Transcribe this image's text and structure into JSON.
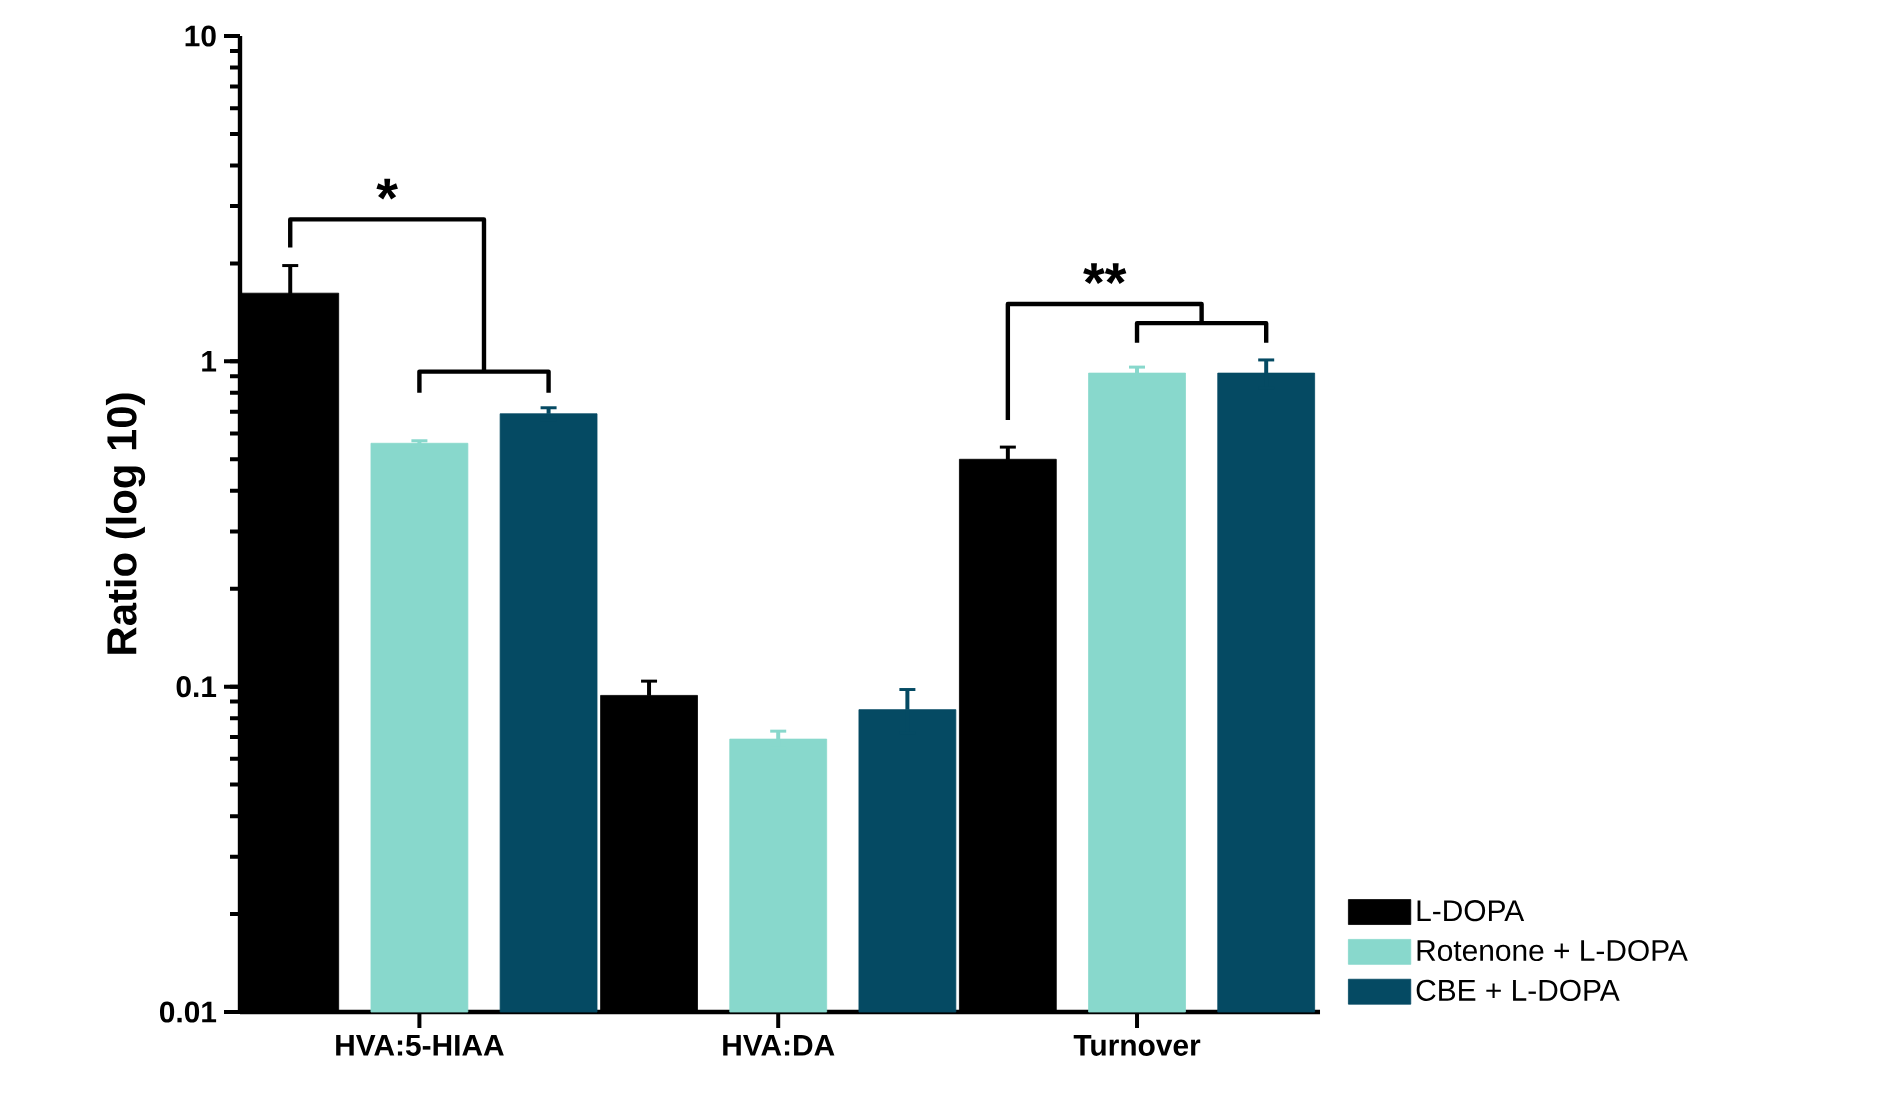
{
  "chart_data": {
    "type": "bar",
    "ylabel": "Ratio (log 10)",
    "categories": [
      "HVA:5-HIAA",
      "HVA:DA",
      "Turnover"
    ],
    "series": [
      {
        "name": "L-DOPA",
        "color": "#000000",
        "values": [
          1.62,
          0.094,
          0.5
        ],
        "errors": [
          0.35,
          0.01,
          0.045
        ]
      },
      {
        "name": "Rotenone + L-DOPA",
        "color": "#88d8cc",
        "values": [
          0.56,
          0.069,
          0.92
        ],
        "errors": [
          0.01,
          0.004,
          0.04
        ]
      },
      {
        "name": "CBE + L-DOPA",
        "color": "#054a63",
        "values": [
          0.69,
          0.085,
          0.92
        ],
        "errors": [
          0.03,
          0.013,
          0.09
        ]
      }
    ],
    "log": "y",
    "ylim": [
      0.01,
      10
    ],
    "yticks": [
      0.01,
      0.1,
      1,
      10
    ],
    "grid": false,
    "legend": "bottom right",
    "annotations": [
      "*",
      "**"
    ]
  }
}
